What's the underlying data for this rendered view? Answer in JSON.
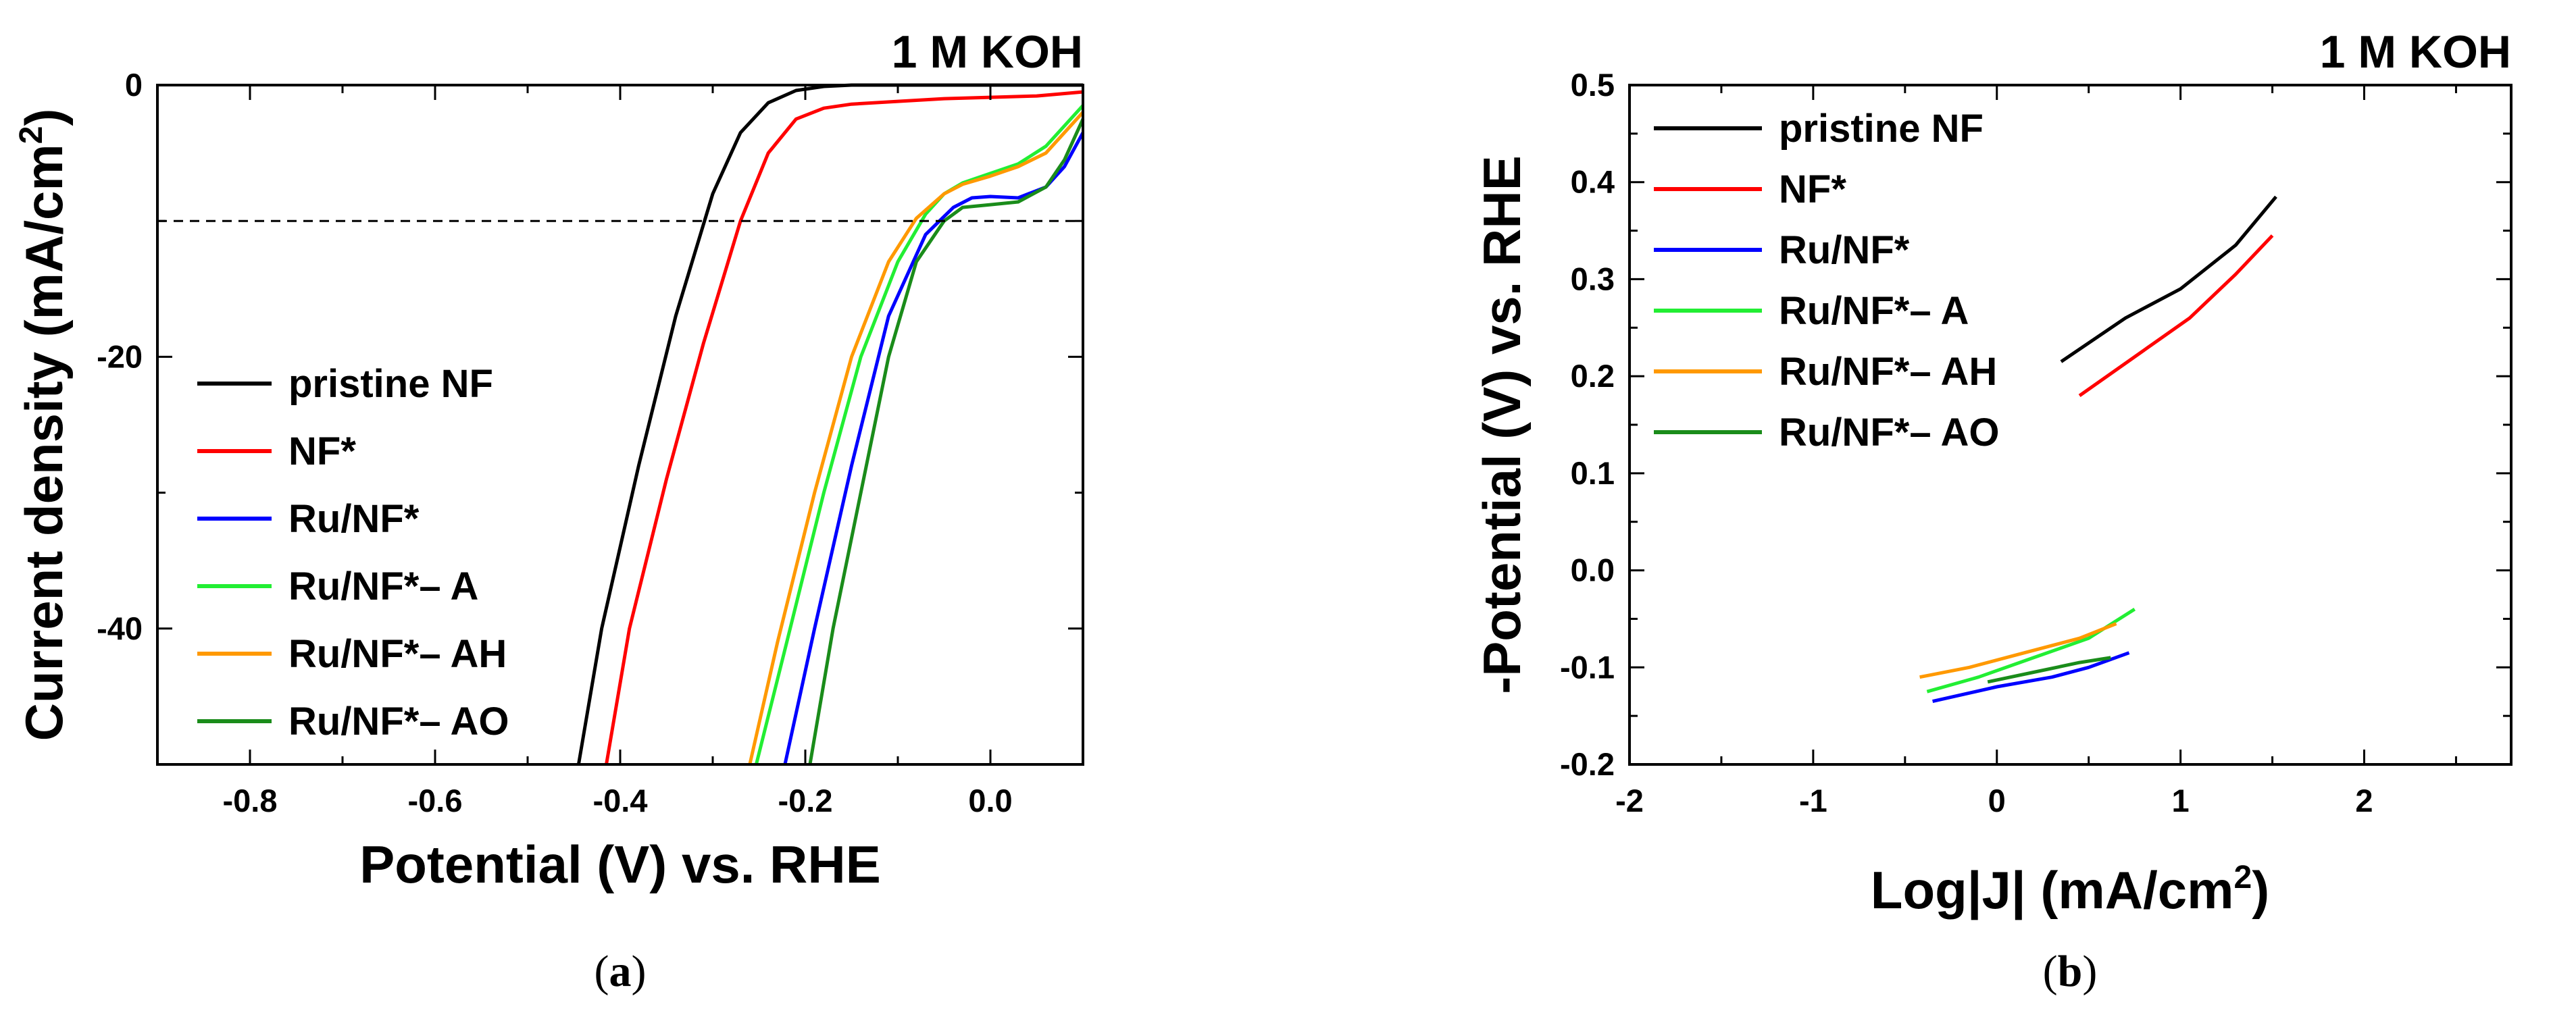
{
  "chart_data": [
    {
      "type": "line",
      "panel": "(a)",
      "panel_letter": "a",
      "condition_label": "1 M KOH",
      "xlabel": "Potential (V) vs. RHE",
      "ylabel": "Current density (mA/cm",
      "ylabel_sup": "2",
      "ylabel_close": ")",
      "xlim": [
        -0.9,
        0.1
      ],
      "ylim": [
        -50,
        0
      ],
      "xticks": [
        -0.8,
        -0.6,
        -0.4,
        -0.2,
        0.0
      ],
      "xtick_labels": [
        "-0.8",
        "-0.6",
        "-0.4",
        "-0.2",
        "0.0"
      ],
      "yticks": [
        0,
        -20,
        -40
      ],
      "ytick_labels": [
        "0",
        "-20",
        "-40"
      ],
      "reference_line": {
        "y": -10,
        "style": "dashed"
      },
      "legend_position": "center-left",
      "series": [
        {
          "name": "pristine NF",
          "color": "#000000",
          "x": [
            -0.445,
            -0.42,
            -0.38,
            -0.34,
            -0.3,
            -0.27,
            -0.24,
            -0.21,
            -0.18,
            -0.15,
            -0.12,
            0.0,
            0.1
          ],
          "y": [
            -50,
            -40,
            -28,
            -17,
            -8,
            -3.5,
            -1.3,
            -0.4,
            -0.1,
            0,
            0,
            0,
            0
          ]
        },
        {
          "name": "NF*",
          "color": "#ff0000",
          "x": [
            -0.415,
            -0.39,
            -0.35,
            -0.31,
            -0.27,
            -0.24,
            -0.21,
            -0.18,
            -0.15,
            -0.1,
            -0.05,
            0.0,
            0.05,
            0.1
          ],
          "y": [
            -50,
            -40,
            -29,
            -19,
            -10,
            -5,
            -2.5,
            -1.7,
            -1.4,
            -1.2,
            -1.0,
            -0.9,
            -0.8,
            -0.5
          ]
        },
        {
          "name": "Ru/NF*",
          "color": "#0000ff",
          "x": [
            -0.222,
            -0.19,
            -0.15,
            -0.11,
            -0.07,
            -0.04,
            -0.02,
            0.0,
            0.03,
            0.06,
            0.08,
            0.1
          ],
          "y": [
            -50,
            -40,
            -28,
            -17,
            -11,
            -9,
            -8.3,
            -8.2,
            -8.3,
            -7.5,
            -6,
            -3.5
          ]
        },
        {
          "name": "Ru/NF*– A",
          "color": "#22ee33",
          "x": [
            -0.253,
            -0.22,
            -0.18,
            -0.14,
            -0.1,
            -0.07,
            -0.05,
            -0.03,
            0.0,
            0.03,
            0.06,
            0.1
          ],
          "y": [
            -50,
            -41,
            -30,
            -20,
            -13,
            -9.5,
            -8,
            -7.2,
            -6.5,
            -5.8,
            -4.5,
            -1.5
          ]
        },
        {
          "name": "Ru/NF*– AH",
          "color": "#ff9900",
          "x": [
            -0.26,
            -0.23,
            -0.19,
            -0.15,
            -0.11,
            -0.08,
            -0.05,
            -0.03,
            0.0,
            0.03,
            0.06,
            0.1
          ],
          "y": [
            -50,
            -41,
            -30,
            -20,
            -13,
            -9.8,
            -8,
            -7.3,
            -6.7,
            -6.0,
            -5.0,
            -2.0
          ]
        },
        {
          "name": "Ru/NF*– AO",
          "color": "#1a8c1a",
          "x": [
            -0.195,
            -0.17,
            -0.14,
            -0.11,
            -0.08,
            -0.05,
            -0.03,
            0.0,
            0.03,
            0.06,
            0.08,
            0.1
          ],
          "y": [
            -50,
            -40,
            -30,
            -20,
            -13,
            -10,
            -9,
            -8.8,
            -8.6,
            -7.5,
            -5.5,
            -2.5
          ]
        }
      ]
    },
    {
      "type": "line",
      "panel": "(b)",
      "panel_letter": "b",
      "condition_label": "1 M KOH",
      "xlabel": "Log|J| (mA/cm",
      "xlabel_sup": "2",
      "xlabel_close": ")",
      "ylabel": "-Potential (V) vs. RHE",
      "xlim": [
        -2,
        2.8
      ],
      "ylim": [
        -0.2,
        0.5
      ],
      "xticks": [
        -2,
        -1,
        0,
        1,
        2
      ],
      "xtick_labels": [
        "-2",
        "-1",
        "0",
        "1",
        "2"
      ],
      "yticks": [
        -0.2,
        -0.1,
        0.0,
        0.1,
        0.2,
        0.3,
        0.4,
        0.5
      ],
      "ytick_labels": [
        "-0.2",
        "-0.1",
        "0.0",
        "0.1",
        "0.2",
        "0.3",
        "0.4",
        "0.5"
      ],
      "legend_position": "top-left",
      "series": [
        {
          "name": "pristine NF",
          "color": "#000000",
          "x": [
            0.35,
            0.7,
            1.0,
            1.3,
            1.52
          ],
          "y": [
            0.215,
            0.26,
            0.29,
            0.335,
            0.385
          ]
        },
        {
          "name": "NF*",
          "color": "#ff0000",
          "x": [
            0.45,
            0.75,
            1.05,
            1.3,
            1.5
          ],
          "y": [
            0.18,
            0.22,
            0.26,
            0.305,
            0.345
          ]
        },
        {
          "name": "Ru/NF*",
          "color": "#0000ff",
          "x": [
            -0.35,
            0.0,
            0.3,
            0.5,
            0.72
          ],
          "y": [
            -0.135,
            -0.12,
            -0.11,
            -0.1,
            -0.085
          ]
        },
        {
          "name": "Ru/NF*– A",
          "color": "#22ee33",
          "x": [
            -0.38,
            -0.1,
            0.2,
            0.5,
            0.75
          ],
          "y": [
            -0.125,
            -0.11,
            -0.09,
            -0.07,
            -0.04
          ]
        },
        {
          "name": "Ru/NF*– AH",
          "color": "#ff9900",
          "x": [
            -0.42,
            -0.15,
            0.15,
            0.45,
            0.65
          ],
          "y": [
            -0.11,
            -0.1,
            -0.085,
            -0.07,
            -0.055
          ]
        },
        {
          "name": "Ru/NF*– AO",
          "color": "#1a8c1a",
          "x": [
            -0.05,
            0.2,
            0.45,
            0.62
          ],
          "y": [
            -0.115,
            -0.105,
            -0.095,
            -0.09
          ]
        }
      ]
    }
  ]
}
